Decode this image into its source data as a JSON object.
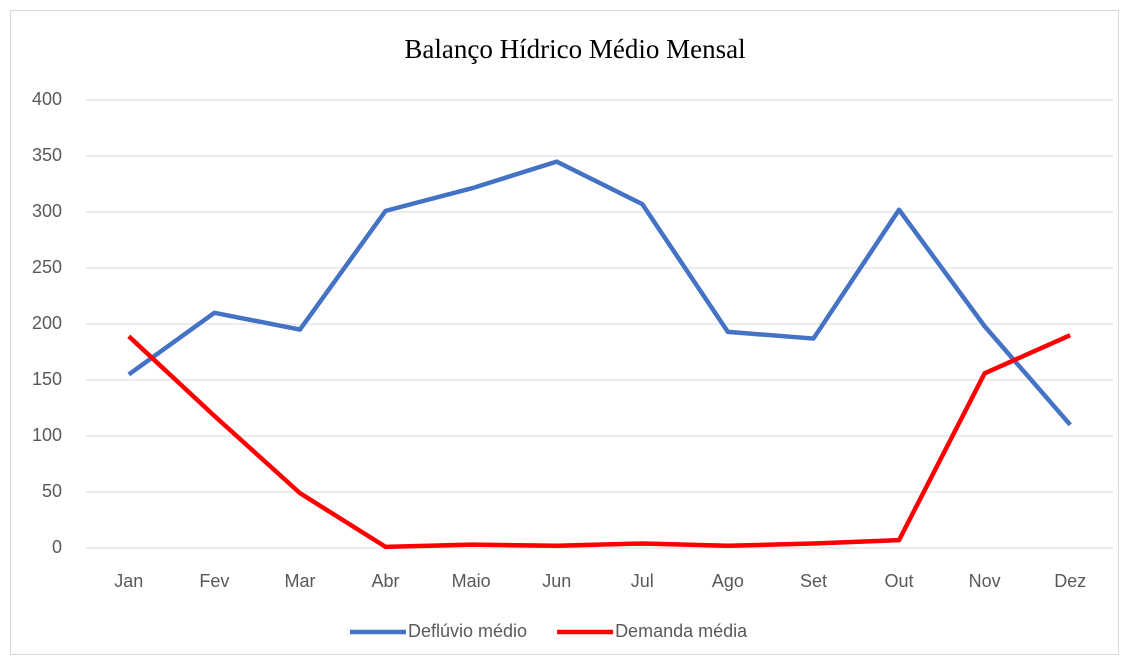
{
  "chart_data": {
    "type": "line",
    "title": "Balanço Hídrico Médio Mensal",
    "categories": [
      "Jan",
      "Fev",
      "Mar",
      "Abr",
      "Maio",
      "Jun",
      "Jul",
      "Ago",
      "Set",
      "Out",
      "Nov",
      "Dez"
    ],
    "series": [
      {
        "name": "Deflúvio médio",
        "color": "#4472c4",
        "values": [
          155,
          210,
          195,
          301,
          321,
          345,
          307,
          193,
          187,
          302,
          198,
          110
        ]
      },
      {
        "name": "Demanda média",
        "color": "#ff0000",
        "values": [
          189,
          118,
          49,
          1,
          3,
          2,
          4,
          2,
          4,
          7,
          156,
          190
        ]
      }
    ],
    "ylim": [
      0,
      400
    ],
    "yticks": [
      0,
      50,
      100,
      150,
      200,
      250,
      300,
      350,
      400
    ],
    "grid": true,
    "legend": "bottom"
  }
}
